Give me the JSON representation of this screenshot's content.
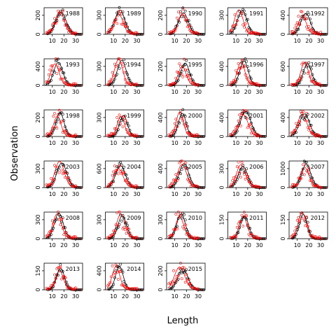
{
  "chart_data": {
    "type": "scatter",
    "xlabel": "Length",
    "ylabel": "Observation",
    "series_colors": {
      "black": "#000000",
      "red": "#ff0000"
    },
    "panels": [
      {
        "year": "1988",
        "xticks": [
          10,
          20,
          30
        ],
        "yticks": [
          0,
          200
        ],
        "ymax": 280
      },
      {
        "year": "1989",
        "xticks": [
          10,
          20,
          30
        ],
        "yticks": [
          0,
          300
        ],
        "ymax": 420
      },
      {
        "year": "1990",
        "xticks": [
          10,
          20,
          30
        ],
        "yticks": [
          0,
          200
        ],
        "ymax": 280
      },
      {
        "year": "1991",
        "xticks": [
          10,
          20,
          30
        ],
        "yticks": [
          0,
          300
        ],
        "ymax": 420
      },
      {
        "year": "1992",
        "xticks": [
          10,
          20,
          30
        ],
        "yticks": [
          0,
          400
        ],
        "ymax": 560
      },
      {
        "year": "1993",
        "xticks": [
          10,
          20,
          30
        ],
        "yticks": [
          0,
          400
        ],
        "ymax": 560
      },
      {
        "year": "1994",
        "xticks": [
          10,
          20,
          30
        ],
        "yticks": [
          0,
          300
        ],
        "ymax": 420
      },
      {
        "year": "1995",
        "xticks": [
          10,
          20,
          30
        ],
        "yticks": [
          0,
          200
        ],
        "ymax": 280
      },
      {
        "year": "1996",
        "xticks": [
          10,
          20,
          30
        ],
        "yticks": [
          0,
          400
        ],
        "ymax": 560
      },
      {
        "year": "1997",
        "xticks": [
          10,
          20,
          30
        ],
        "yticks": [
          0,
          600
        ],
        "ymax": 840
      },
      {
        "year": "1998",
        "xticks": [
          10,
          20,
          30
        ],
        "yticks": [
          0,
          200
        ],
        "ymax": 280
      },
      {
        "year": "1999",
        "xticks": [
          10,
          20,
          30
        ],
        "yticks": [
          0,
          300
        ],
        "ymax": 420
      },
      {
        "year": "2000",
        "xticks": [
          10,
          20,
          30
        ],
        "yticks": [
          0,
          400
        ],
        "ymax": 560
      },
      {
        "year": "2001",
        "xticks": [
          10,
          20,
          30
        ],
        "yticks": [
          0,
          400
        ],
        "ymax": 560
      },
      {
        "year": "2002",
        "xticks": [
          10,
          20,
          30
        ],
        "yticks": [
          0,
          400
        ],
        "ymax": 560
      },
      {
        "year": "2003",
        "xticks": [
          10,
          20,
          30
        ],
        "yticks": [
          0,
          300
        ],
        "ymax": 420
      },
      {
        "year": "2004",
        "xticks": [
          10,
          20,
          30
        ],
        "yticks": [
          0,
          600
        ],
        "ymax": 840
      },
      {
        "year": "2005",
        "xticks": [
          10,
          20,
          30
        ],
        "yticks": [
          0,
          400
        ],
        "ymax": 560
      },
      {
        "year": "2006",
        "xticks": [
          10,
          20,
          30
        ],
        "yticks": [
          0,
          300
        ],
        "ymax": 420
      },
      {
        "year": "2007",
        "xticks": [
          10,
          20,
          30
        ],
        "yticks": [
          0,
          1000
        ],
        "ymax": 1400
      },
      {
        "year": "2008",
        "xticks": [
          10,
          20,
          30
        ],
        "yticks": [
          0,
          300
        ],
        "ymax": 420
      },
      {
        "year": "2009",
        "xticks": [
          10,
          20,
          30
        ],
        "yticks": [
          0,
          300
        ],
        "ymax": 420
      },
      {
        "year": "2010",
        "xticks": [
          10,
          20,
          30
        ],
        "yticks": [
          0,
          300
        ],
        "ymax": 420
      },
      {
        "year": "2011",
        "xticks": [
          10,
          20,
          30
        ],
        "yticks": [
          0,
          150
        ],
        "ymax": 210
      },
      {
        "year": "2012",
        "xticks": [
          10,
          20,
          30
        ],
        "yticks": [
          0,
          150
        ],
        "ymax": 210
      },
      {
        "year": "2013",
        "xticks": [
          10,
          20,
          30
        ],
        "yticks": [
          0,
          150
        ],
        "ymax": 210
      },
      {
        "year": "2014",
        "xticks": [
          10,
          20,
          30
        ],
        "yticks": [
          0,
          400
        ],
        "ymax": 560
      },
      {
        "year": "2015",
        "xticks": [
          10,
          20,
          30
        ],
        "yticks": [
          0,
          200
        ],
        "ymax": 280
      }
    ]
  }
}
